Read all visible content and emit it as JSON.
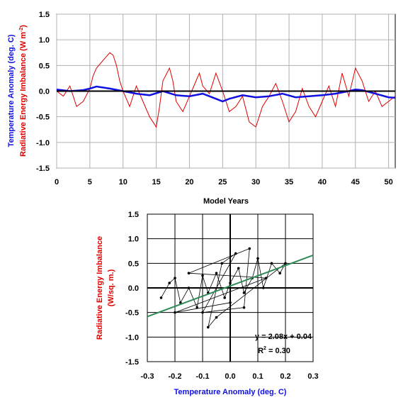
{
  "chart_data": [
    {
      "type": "line",
      "xlabel": "Model Years",
      "ylabel_top": "Temperature Anomaly (deg. C)",
      "ylabel_bottom": "Radiative Energy Imbalance (W m-2)",
      "ylabel_bottom_base": "Radiative Energy Imbalance (W m",
      "ylabel_bottom_sup": "-2",
      "ylabel_bottom_close": ")",
      "xlim": [
        0,
        51
      ],
      "ylim": [
        -1.5,
        1.5
      ],
      "x_ticks": [
        0,
        5,
        10,
        15,
        20,
        25,
        30,
        35,
        40,
        45,
        50
      ],
      "y_ticks": [
        -1.5,
        -1.0,
        -0.5,
        0.0,
        0.5,
        1.0,
        1.5
      ],
      "y_tick_labels": [
        "-1.5",
        "-1.0",
        "-0.5",
        "0.0",
        "0.5",
        "1.0",
        "1.5"
      ],
      "grid": true,
      "series": [
        {
          "color": "#e00000",
          "x": [
            0,
            1,
            2,
            3,
            4,
            5,
            5.5,
            6,
            7,
            8,
            8.5,
            9,
            9.5,
            10,
            11,
            12,
            13,
            14,
            15,
            15.5,
            16,
            17,
            17.5,
            18,
            19,
            20,
            21,
            21.5,
            22,
            23,
            24,
            25,
            26,
            27,
            28,
            29,
            30,
            30.5,
            31,
            32,
            33,
            34,
            35,
            36,
            37,
            38,
            39,
            40,
            41,
            42,
            43,
            44,
            45,
            46,
            47,
            48,
            49,
            50,
            51
          ],
          "y": [
            0.0,
            -0.1,
            0.1,
            -0.3,
            -0.2,
            0.05,
            0.3,
            0.45,
            0.6,
            0.75,
            0.7,
            0.5,
            0.2,
            0.0,
            -0.3,
            0.1,
            -0.2,
            -0.5,
            -0.7,
            -0.3,
            0.2,
            0.45,
            0.2,
            -0.2,
            -0.4,
            -0.1,
            0.2,
            0.35,
            0.1,
            -0.05,
            0.35,
            0.0,
            -0.4,
            -0.3,
            -0.1,
            -0.6,
            -0.7,
            -0.5,
            -0.3,
            -0.1,
            0.15,
            -0.2,
            -0.6,
            -0.4,
            0.05,
            -0.3,
            -0.5,
            -0.2,
            0.1,
            -0.3,
            0.35,
            -0.1,
            0.45,
            0.2,
            -0.2,
            0.0,
            -0.3,
            -0.2,
            -0.1
          ]
        },
        {
          "color": "#1010e0",
          "x": [
            0,
            2,
            4,
            5,
            6,
            8,
            10,
            12,
            14,
            16,
            18,
            20,
            22,
            24,
            25,
            26,
            28,
            30,
            32,
            34,
            36,
            38,
            40,
            42,
            44,
            45,
            46,
            48,
            50,
            51
          ],
          "y": [
            0.03,
            0.0,
            0.02,
            0.05,
            0.09,
            0.05,
            0.0,
            -0.05,
            -0.08,
            0.0,
            -0.08,
            -0.1,
            -0.05,
            -0.15,
            -0.2,
            -0.15,
            -0.08,
            -0.12,
            -0.1,
            -0.05,
            -0.12,
            -0.1,
            -0.08,
            -0.05,
            0.0,
            0.03,
            0.02,
            -0.05,
            -0.12,
            -0.13
          ]
        }
      ]
    },
    {
      "type": "scatter",
      "xlabel": "Temperature Anomaly (deg. C)",
      "ylabel": "Radiative Energy Imbalance (W/sq. m.)",
      "ylabel_line1": "Radiative Energy Imbalance",
      "ylabel_line2": "(W/sq. m.)",
      "xlim": [
        -0.3,
        0.3
      ],
      "ylim": [
        -1.5,
        1.5
      ],
      "x_ticks": [
        -0.3,
        -0.2,
        -0.1,
        0.0,
        0.1,
        0.2,
        0.3
      ],
      "x_tick_labels": [
        "-0.3",
        "-0.2",
        "-0.1",
        "0.0",
        "0.1",
        "0.2",
        "0.3"
      ],
      "y_ticks": [
        -1.5,
        -1.0,
        -0.5,
        0.0,
        0.5,
        1.0,
        1.5
      ],
      "y_tick_labels": [
        "-1.5",
        "-1.0",
        "-0.5",
        "0.0",
        "0.5",
        "1.0",
        "1.5"
      ],
      "grid": true,
      "trendline": {
        "slope": 2.08,
        "intercept": 0.04,
        "x_range": [
          -0.3,
          0.3
        ],
        "color": "#2e8b57"
      },
      "annotation_eq": "y = 2.08x + 0.04",
      "annotation_r2_base": "R",
      "annotation_r2_sup": "2",
      "annotation_r2_tail": " = 0.30",
      "points": [
        [
          -0.25,
          -0.2
        ],
        [
          -0.22,
          0.1
        ],
        [
          -0.2,
          0.2
        ],
        [
          -0.18,
          -0.3
        ],
        [
          -0.15,
          0.0
        ],
        [
          -0.12,
          -0.4
        ],
        [
          -0.1,
          0.25
        ],
        [
          -0.08,
          -0.1
        ],
        [
          -0.05,
          0.3
        ],
        [
          -0.02,
          -0.2
        ],
        [
          0.0,
          0.1
        ],
        [
          0.03,
          0.4
        ],
        [
          0.05,
          -0.1
        ],
        [
          0.08,
          0.2
        ],
        [
          0.1,
          0.6
        ],
        [
          0.12,
          0.0
        ],
        [
          0.15,
          0.5
        ],
        [
          0.18,
          0.3
        ],
        [
          0.2,
          0.5
        ],
        [
          -0.05,
          -0.6
        ],
        [
          -0.08,
          -0.8
        ],
        [
          -0.03,
          0.5
        ],
        [
          0.02,
          0.7
        ],
        [
          -0.1,
          -0.5
        ],
        [
          0.05,
          -0.4
        ],
        [
          0.07,
          0.8
        ],
        [
          -0.15,
          0.3
        ],
        [
          0.13,
          0.2
        ],
        [
          -0.2,
          -0.5
        ],
        [
          0.0,
          -0.3
        ]
      ]
    }
  ]
}
